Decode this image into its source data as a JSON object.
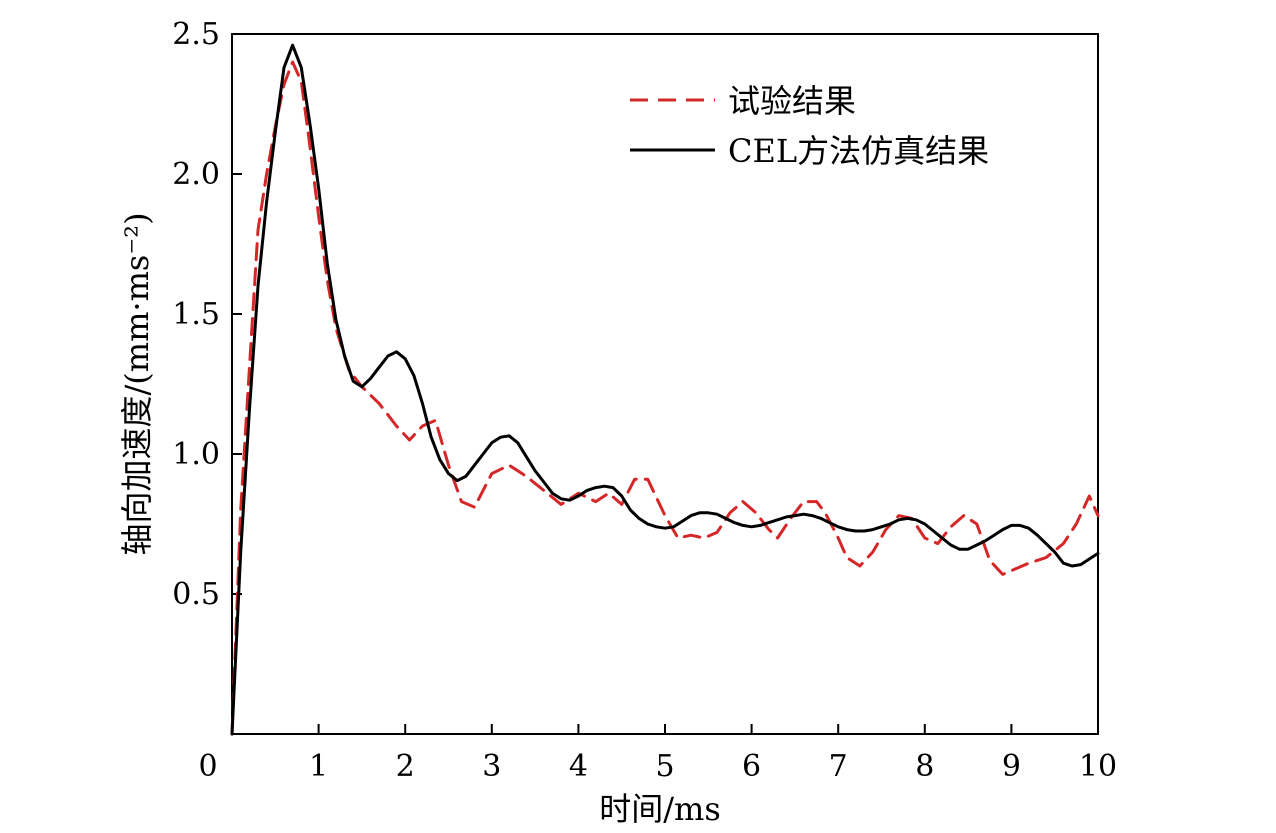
{
  "chart_data": {
    "type": "line",
    "xlabel": "时间/ms",
    "ylabel": "轴向加速度/(mm·ms⁻²)",
    "xlim": [
      0,
      10
    ],
    "ylim": [
      0,
      2.5
    ],
    "xticks": [
      0,
      1,
      2,
      3,
      4,
      5,
      6,
      7,
      8,
      9,
      10
    ],
    "xtick_labels": [
      "0",
      "1",
      "2",
      "3",
      "4",
      "5",
      "6",
      "7",
      "8",
      "9",
      "10"
    ],
    "yticks": [
      0.5,
      1.0,
      1.5,
      2.0,
      2.5
    ],
    "ytick_labels": [
      "0.5",
      "1.0",
      "1.5",
      "2.0",
      "2.5"
    ],
    "grid": false,
    "legend_position": "top-right",
    "series": [
      {
        "name": "试验结果",
        "color": "#d62728",
        "style": "dashed",
        "points": [
          [
            0.0,
            0.0
          ],
          [
            0.1,
            0.8
          ],
          [
            0.2,
            1.3
          ],
          [
            0.3,
            1.8
          ],
          [
            0.4,
            2.0
          ],
          [
            0.5,
            2.17
          ],
          [
            0.6,
            2.32
          ],
          [
            0.7,
            2.4
          ],
          [
            0.8,
            2.33
          ],
          [
            0.9,
            2.1
          ],
          [
            1.0,
            1.85
          ],
          [
            1.1,
            1.62
          ],
          [
            1.2,
            1.45
          ],
          [
            1.35,
            1.3
          ],
          [
            1.5,
            1.24
          ],
          [
            1.7,
            1.18
          ],
          [
            1.9,
            1.1
          ],
          [
            2.05,
            1.05
          ],
          [
            2.2,
            1.1
          ],
          [
            2.35,
            1.12
          ],
          [
            2.5,
            0.96
          ],
          [
            2.65,
            0.83
          ],
          [
            2.8,
            0.81
          ],
          [
            2.9,
            0.87
          ],
          [
            3.0,
            0.93
          ],
          [
            3.2,
            0.96
          ],
          [
            3.4,
            0.92
          ],
          [
            3.6,
            0.87
          ],
          [
            3.8,
            0.82
          ],
          [
            4.0,
            0.86
          ],
          [
            4.2,
            0.83
          ],
          [
            4.35,
            0.86
          ],
          [
            4.5,
            0.82
          ],
          [
            4.65,
            0.91
          ],
          [
            4.8,
            0.91
          ],
          [
            5.0,
            0.78
          ],
          [
            5.15,
            0.7
          ],
          [
            5.3,
            0.71
          ],
          [
            5.45,
            0.7
          ],
          [
            5.6,
            0.72
          ],
          [
            5.75,
            0.79
          ],
          [
            5.9,
            0.83
          ],
          [
            6.05,
            0.79
          ],
          [
            6.2,
            0.73
          ],
          [
            6.3,
            0.7
          ],
          [
            6.45,
            0.77
          ],
          [
            6.6,
            0.83
          ],
          [
            6.75,
            0.83
          ],
          [
            6.85,
            0.79
          ],
          [
            7.0,
            0.7
          ],
          [
            7.1,
            0.63
          ],
          [
            7.25,
            0.6
          ],
          [
            7.4,
            0.65
          ],
          [
            7.55,
            0.73
          ],
          [
            7.7,
            0.78
          ],
          [
            7.85,
            0.77
          ],
          [
            8.0,
            0.7
          ],
          [
            8.15,
            0.68
          ],
          [
            8.3,
            0.74
          ],
          [
            8.45,
            0.78
          ],
          [
            8.6,
            0.75
          ],
          [
            8.75,
            0.62
          ],
          [
            8.9,
            0.57
          ],
          [
            9.05,
            0.59
          ],
          [
            9.2,
            0.61
          ],
          [
            9.4,
            0.63
          ],
          [
            9.6,
            0.68
          ],
          [
            9.75,
            0.75
          ],
          [
            9.9,
            0.85
          ],
          [
            10.0,
            0.78
          ]
        ]
      },
      {
        "name": "CEL方法仿真结果",
        "color": "#000000",
        "style": "solid",
        "points": [
          [
            0.0,
            0.0
          ],
          [
            0.1,
            0.65
          ],
          [
            0.2,
            1.15
          ],
          [
            0.3,
            1.6
          ],
          [
            0.4,
            1.9
          ],
          [
            0.5,
            2.15
          ],
          [
            0.6,
            2.38
          ],
          [
            0.7,
            2.46
          ],
          [
            0.8,
            2.38
          ],
          [
            0.9,
            2.18
          ],
          [
            1.0,
            1.95
          ],
          [
            1.1,
            1.68
          ],
          [
            1.2,
            1.48
          ],
          [
            1.3,
            1.35
          ],
          [
            1.4,
            1.26
          ],
          [
            1.5,
            1.24
          ],
          [
            1.6,
            1.27
          ],
          [
            1.7,
            1.31
          ],
          [
            1.8,
            1.35
          ],
          [
            1.9,
            1.365
          ],
          [
            2.0,
            1.34
          ],
          [
            2.1,
            1.28
          ],
          [
            2.2,
            1.18
          ],
          [
            2.3,
            1.06
          ],
          [
            2.4,
            0.98
          ],
          [
            2.5,
            0.93
          ],
          [
            2.6,
            0.905
          ],
          [
            2.7,
            0.92
          ],
          [
            2.8,
            0.96
          ],
          [
            2.9,
            1.0
          ],
          [
            3.0,
            1.04
          ],
          [
            3.1,
            1.06
          ],
          [
            3.2,
            1.065
          ],
          [
            3.3,
            1.04
          ],
          [
            3.4,
            0.99
          ],
          [
            3.5,
            0.94
          ],
          [
            3.6,
            0.9
          ],
          [
            3.7,
            0.86
          ],
          [
            3.8,
            0.84
          ],
          [
            3.9,
            0.835
          ],
          [
            4.0,
            0.85
          ],
          [
            4.1,
            0.87
          ],
          [
            4.2,
            0.88
          ],
          [
            4.3,
            0.885
          ],
          [
            4.4,
            0.88
          ],
          [
            4.5,
            0.85
          ],
          [
            4.6,
            0.8
          ],
          [
            4.7,
            0.77
          ],
          [
            4.8,
            0.75
          ],
          [
            4.9,
            0.74
          ],
          [
            5.0,
            0.735
          ],
          [
            5.1,
            0.74
          ],
          [
            5.2,
            0.76
          ],
          [
            5.3,
            0.78
          ],
          [
            5.4,
            0.79
          ],
          [
            5.5,
            0.79
          ],
          [
            5.6,
            0.785
          ],
          [
            5.7,
            0.77
          ],
          [
            5.8,
            0.755
          ],
          [
            5.9,
            0.745
          ],
          [
            6.0,
            0.74
          ],
          [
            6.1,
            0.745
          ],
          [
            6.2,
            0.755
          ],
          [
            6.3,
            0.765
          ],
          [
            6.4,
            0.775
          ],
          [
            6.5,
            0.78
          ],
          [
            6.6,
            0.785
          ],
          [
            6.7,
            0.78
          ],
          [
            6.8,
            0.77
          ],
          [
            6.9,
            0.755
          ],
          [
            7.0,
            0.74
          ],
          [
            7.1,
            0.73
          ],
          [
            7.2,
            0.725
          ],
          [
            7.3,
            0.725
          ],
          [
            7.4,
            0.73
          ],
          [
            7.5,
            0.74
          ],
          [
            7.6,
            0.75
          ],
          [
            7.7,
            0.765
          ],
          [
            7.8,
            0.77
          ],
          [
            7.9,
            0.765
          ],
          [
            8.0,
            0.75
          ],
          [
            8.1,
            0.725
          ],
          [
            8.2,
            0.7
          ],
          [
            8.3,
            0.675
          ],
          [
            8.4,
            0.66
          ],
          [
            8.5,
            0.66
          ],
          [
            8.6,
            0.675
          ],
          [
            8.7,
            0.69
          ],
          [
            8.8,
            0.71
          ],
          [
            8.9,
            0.73
          ],
          [
            9.0,
            0.745
          ],
          [
            9.1,
            0.745
          ],
          [
            9.2,
            0.735
          ],
          [
            9.3,
            0.71
          ],
          [
            9.4,
            0.68
          ],
          [
            9.5,
            0.65
          ],
          [
            9.6,
            0.61
          ],
          [
            9.7,
            0.6
          ],
          [
            9.8,
            0.605
          ],
          [
            9.9,
            0.625
          ],
          [
            10.0,
            0.645
          ]
        ]
      }
    ]
  }
}
